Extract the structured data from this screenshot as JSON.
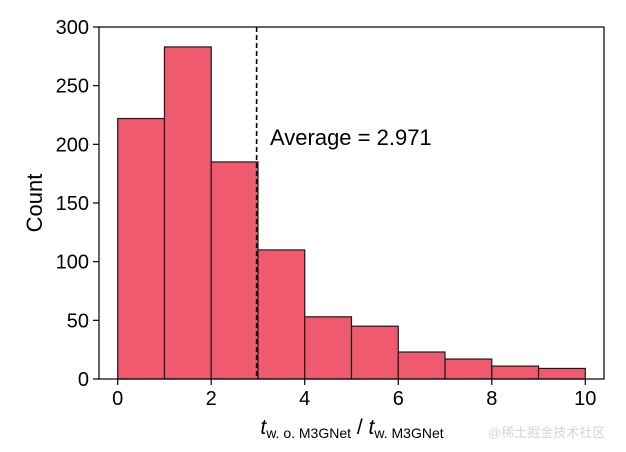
{
  "chart_data": {
    "type": "bar",
    "subtype": "histogram",
    "bin_edges": [
      0,
      1,
      2,
      3,
      4,
      5,
      6,
      7,
      8,
      9,
      10
    ],
    "values": [
      222,
      283,
      185,
      110,
      53,
      45,
      23,
      17,
      11,
      9
    ],
    "xlim": [
      -0.4,
      10.4
    ],
    "ylim": [
      0,
      300
    ],
    "xticks": [
      0,
      2,
      4,
      6,
      8,
      10
    ],
    "yticks": [
      0,
      50,
      100,
      150,
      200,
      250,
      300
    ],
    "ylabel": "Count",
    "xlabel": {
      "var1": "t",
      "sub1": "w. o. M3GNet",
      "sep": " / ",
      "var2": "t",
      "sub2": "w. M3GNet"
    },
    "average_line": {
      "x": 2.971,
      "style": "dashed"
    },
    "annotation": "Average = 2.971",
    "bar_color": "#f05a6e",
    "edge_color": "#1a1a1a",
    "grid": false
  },
  "watermark": "@稀土掘金技术社区"
}
